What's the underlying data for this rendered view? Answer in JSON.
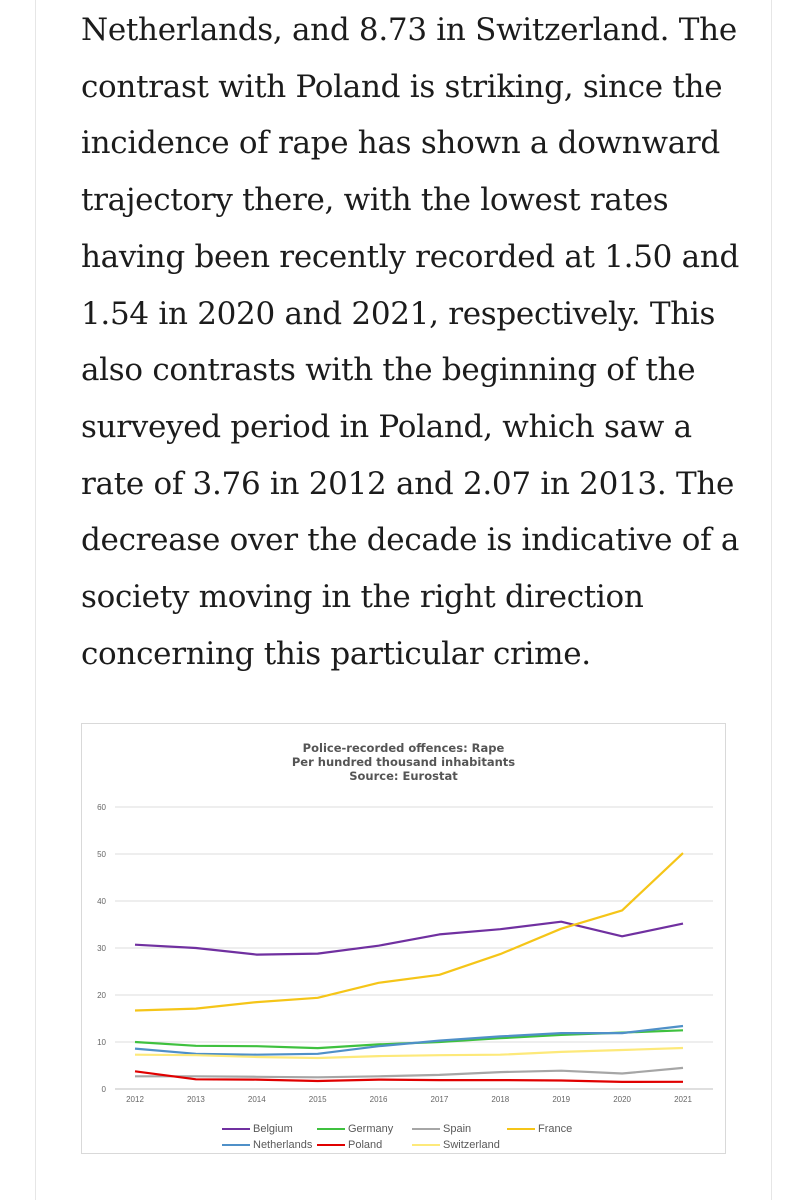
{
  "article": {
    "lines": [
      "Netherlands, and 8.73 in Switzerland. The",
      "contrast with Poland is striking, since the",
      "incidence of rape has shown a downward",
      "trajectory there, with the lowest rates",
      "having been recently recorded at 1.50 and",
      "1.54 in 2020 and 2021, respectively. This",
      "also contrasts with the beginning of the",
      "surveyed period in Poland, which saw a",
      "rate of 3.76 in 2012 and 2.07 in 2013. The",
      "decrease over the decade is indicative of a",
      "society moving in the right direction",
      "concerning this particular crime."
    ]
  },
  "chart_data": {
    "type": "line",
    "title": "Police-recorded offences: Rape",
    "subtitle": "Per hundred thousand inhabitants",
    "source": "Source: Eurostat",
    "xlabel": "",
    "ylabel": "",
    "x": [
      "2012",
      "2013",
      "2014",
      "2015",
      "2016",
      "2017",
      "2018",
      "2019",
      "2020",
      "2021"
    ],
    "ylim": [
      0,
      60
    ],
    "yticks": [
      "0",
      "10",
      "20",
      "30",
      "40",
      "50",
      "60"
    ],
    "grid": true,
    "legend_position": "bottom",
    "series": [
      {
        "name": "Belgium",
        "color": "#7030a0",
        "values": [
          30.7,
          30.0,
          28.6,
          28.8,
          30.5,
          32.9,
          34.0,
          35.6,
          32.5,
          35.2
        ]
      },
      {
        "name": "Germany",
        "color": "#3fc13f",
        "values": [
          10.0,
          9.2,
          9.1,
          8.7,
          9.5,
          10.0,
          10.8,
          11.5,
          12.0,
          12.5
        ]
      },
      {
        "name": "Spain",
        "color": "#a6a6a6",
        "values": [
          2.7,
          2.7,
          2.6,
          2.5,
          2.7,
          3.0,
          3.6,
          3.9,
          3.3,
          4.5
        ]
      },
      {
        "name": "France",
        "color": "#f5c518",
        "values": [
          16.7,
          17.1,
          18.5,
          19.4,
          22.6,
          24.3,
          28.7,
          34.1,
          38.0,
          50.2
        ]
      },
      {
        "name": "Netherlands",
        "color": "#4f90c8",
        "values": [
          8.6,
          7.5,
          7.3,
          7.5,
          9.1,
          10.3,
          11.2,
          11.9,
          11.9,
          13.4
        ]
      },
      {
        "name": "Poland",
        "color": "#e00000",
        "values": [
          3.76,
          2.07,
          2.0,
          1.7,
          2.0,
          1.9,
          1.9,
          1.8,
          1.5,
          1.54
        ]
      },
      {
        "name": "Switzerland",
        "color": "#fde97a",
        "values": [
          7.3,
          7.2,
          6.8,
          6.6,
          7.0,
          7.2,
          7.3,
          7.9,
          8.3,
          8.73
        ]
      }
    ]
  }
}
